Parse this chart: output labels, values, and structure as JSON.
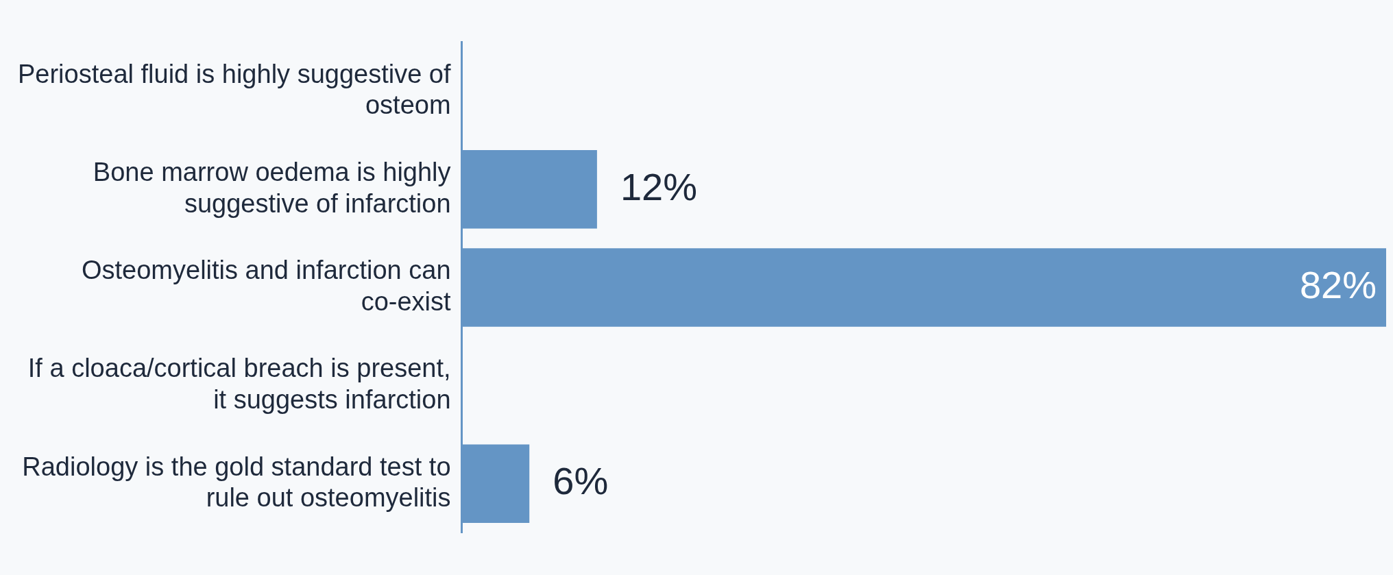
{
  "chart_data": {
    "type": "bar",
    "orientation": "horizontal",
    "categories": [
      "Periosteal fluid is highly suggestive of osteom",
      "Bone marrow oedema is highly suggestive of infarction",
      "Osteomyelitis and infarction can co-exist",
      "If a cloaca/cortical breach is present, it suggests infarction",
      "Radiology is the gold standard test to rule out osteomyelitis"
    ],
    "values": [
      0,
      12,
      82,
      0,
      6
    ],
    "color": "#6495c5",
    "value_labels": [
      null,
      "12%",
      "82%",
      null,
      "6%"
    ]
  }
}
